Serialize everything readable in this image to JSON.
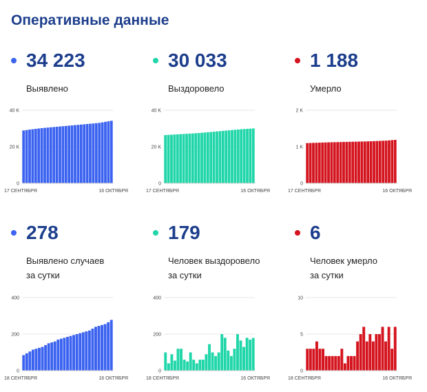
{
  "title": "Оперативные данные",
  "colors": {
    "blue": "#3b63f0",
    "green": "#20d6a9",
    "red": "#d4141e"
  },
  "panels": [
    {
      "number": "34 223",
      "label": [
        "Выявлено"
      ],
      "color": "#3b63f0",
      "chart_data": {
        "type": "bar",
        "x_start": "17 СЕНТЯБРЯ",
        "x_end": "16 ОКТЯБРЯ",
        "yticks": [
          "40 K",
          "20 K",
          "0"
        ],
        "ylim": [
          0,
          40000
        ],
        "values": [
          28900,
          29150,
          29400,
          29600,
          29800,
          30000,
          30200,
          30350,
          30500,
          30650,
          30800,
          30950,
          31100,
          31250,
          31400,
          31550,
          31700,
          31850,
          32000,
          32150,
          32300,
          32450,
          32600,
          32750,
          32900,
          33100,
          33350,
          33650,
          33950,
          34223
        ]
      }
    },
    {
      "number": "30 033",
      "label": [
        "Выздоровело"
      ],
      "color": "#20d6a9",
      "chart_data": {
        "type": "bar",
        "x_start": "17 СЕНТЯБРЯ",
        "x_end": "16 ОКТЯБРЯ",
        "yticks": [
          "40 K",
          "20 K",
          "0"
        ],
        "ylim": [
          0,
          40000
        ],
        "values": [
          26400,
          26500,
          26600,
          26700,
          26800,
          26900,
          27000,
          27100,
          27200,
          27300,
          27400,
          27500,
          27650,
          27800,
          27950,
          28100,
          28250,
          28400,
          28550,
          28700,
          28850,
          29000,
          29150,
          29300,
          29450,
          29600,
          29700,
          29800,
          29900,
          30033
        ]
      }
    },
    {
      "number": "1 188",
      "label": [
        "Умерло"
      ],
      "color": "#d4141e",
      "chart_data": {
        "type": "bar",
        "x_start": "17 СЕНТЯБРЯ",
        "x_end": "16 ОКТЯБРЯ",
        "yticks": [
          "2 K",
          "1 K",
          "0"
        ],
        "ylim": [
          0,
          2000
        ],
        "values": [
          1100,
          1103,
          1106,
          1109,
          1112,
          1115,
          1118,
          1121,
          1123,
          1125,
          1127,
          1129,
          1131,
          1133,
          1135,
          1137,
          1139,
          1141,
          1143,
          1145,
          1148,
          1151,
          1154,
          1157,
          1160,
          1164,
          1168,
          1173,
          1182,
          1188
        ]
      }
    },
    {
      "number": "278",
      "label": [
        "Выявлено случаев",
        "за сутки"
      ],
      "color": "#3b63f0",
      "chart_data": {
        "type": "bar",
        "x_start": "18 СЕНТЯБРЯ",
        "x_end": "16 ОКТЯБРЯ",
        "yticks": [
          "400",
          "200",
          "0"
        ],
        "ylim": [
          0,
          400
        ],
        "values": [
          85,
          95,
          105,
          115,
          120,
          125,
          130,
          140,
          150,
          155,
          160,
          170,
          175,
          180,
          185,
          190,
          195,
          200,
          205,
          210,
          215,
          220,
          230,
          240,
          245,
          250,
          255,
          265,
          278
        ]
      }
    },
    {
      "number": "179",
      "label": [
        "Человек выздоровело",
        "за сутки"
      ],
      "color": "#20d6a9",
      "chart_data": {
        "type": "bar",
        "x_start": "18 СЕНТЯБРЯ",
        "x_end": "16 ОКТЯБРЯ",
        "yticks": [
          "400",
          "200",
          "0"
        ],
        "ylim": [
          0,
          400
        ],
        "values": [
          100,
          40,
          90,
          55,
          120,
          120,
          60,
          50,
          100,
          60,
          40,
          60,
          60,
          90,
          145,
          100,
          80,
          100,
          200,
          180,
          110,
          80,
          120,
          200,
          165,
          130,
          180,
          170,
          179
        ]
      }
    },
    {
      "number": "6",
      "label": [
        "Человек умерло",
        "за сутки"
      ],
      "color": "#d4141e",
      "chart_data": {
        "type": "bar",
        "x_start": "18 СЕНТЯБРЯ",
        "x_end": "16 ОКТЯБРЯ",
        "yticks": [
          "10",
          "5",
          "0"
        ],
        "ylim": [
          0,
          10
        ],
        "values": [
          3,
          3,
          3,
          4,
          3,
          3,
          2,
          2,
          2,
          2,
          2,
          3,
          1,
          2,
          2,
          2,
          4,
          5,
          6,
          4,
          5,
          4,
          5,
          5,
          6,
          4,
          6,
          3,
          6
        ]
      }
    }
  ]
}
